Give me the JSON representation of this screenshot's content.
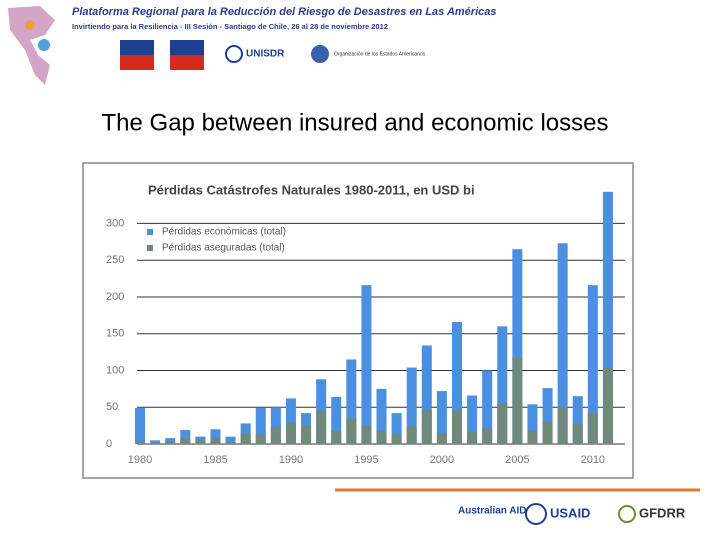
{
  "slide": {
    "header_title": "Plataforma Regional para la Reducción del Riesgo de Desastres en Las Américas",
    "header_subtitle": "Invirtiendo para la Resiliencia - III Sesión - Santiago de Chile, 26 al 28 de noviembre 2012",
    "logo_unisdr": "UNISDR",
    "logo_oea": "Organización de los Estados Americanos",
    "title": "The Gap between insured and economic losses",
    "logo_ausaid": "Australian AID",
    "logo_usaid": "USAID",
    "logo_gfdrr": "GFDRR"
  },
  "chart_data": {
    "type": "bar",
    "title": "Pérdidas Catástrofes Naturales 1980-2011, en USD bi",
    "x": [
      1980,
      1981,
      1982,
      1983,
      1984,
      1985,
      1986,
      1987,
      1988,
      1989,
      1990,
      1991,
      1992,
      1993,
      1994,
      1995,
      1996,
      1997,
      1998,
      1999,
      2000,
      2001,
      2002,
      2003,
      2004,
      2005,
      2006,
      2007,
      2008,
      2009,
      2010,
      2011
    ],
    "series": [
      {
        "name": "Pérdidas económicas (total)",
        "color": "#4a8fe0",
        "values": [
          49,
          5,
          8,
          19,
          10,
          20,
          10,
          28,
          49,
          50,
          62,
          42,
          88,
          64,
          115,
          216,
          75,
          42,
          104,
          134,
          72,
          166,
          66,
          100,
          160,
          265,
          54,
          76,
          273,
          65,
          216,
          343
        ]
      },
      {
        "name": "Pérdidas aseguradas (total)",
        "color": "#6f8a7c",
        "values": [
          3,
          2,
          3,
          8,
          6,
          8,
          3,
          15,
          13,
          23,
          29,
          25,
          45,
          18,
          35,
          25,
          18,
          13,
          24,
          46,
          15,
          46,
          17,
          21,
          55,
          118,
          18,
          30,
          50,
          27,
          42,
          103
        ]
      }
    ],
    "xlim": [
      1979.8,
      2011.8
    ],
    "xticks": [
      1980,
      1985,
      1990,
      1995,
      2000,
      2005,
      2010
    ],
    "ylim": [
      0,
      355
    ],
    "yticks": [
      0,
      50,
      100,
      150,
      200,
      250,
      300
    ],
    "grid": true
  }
}
